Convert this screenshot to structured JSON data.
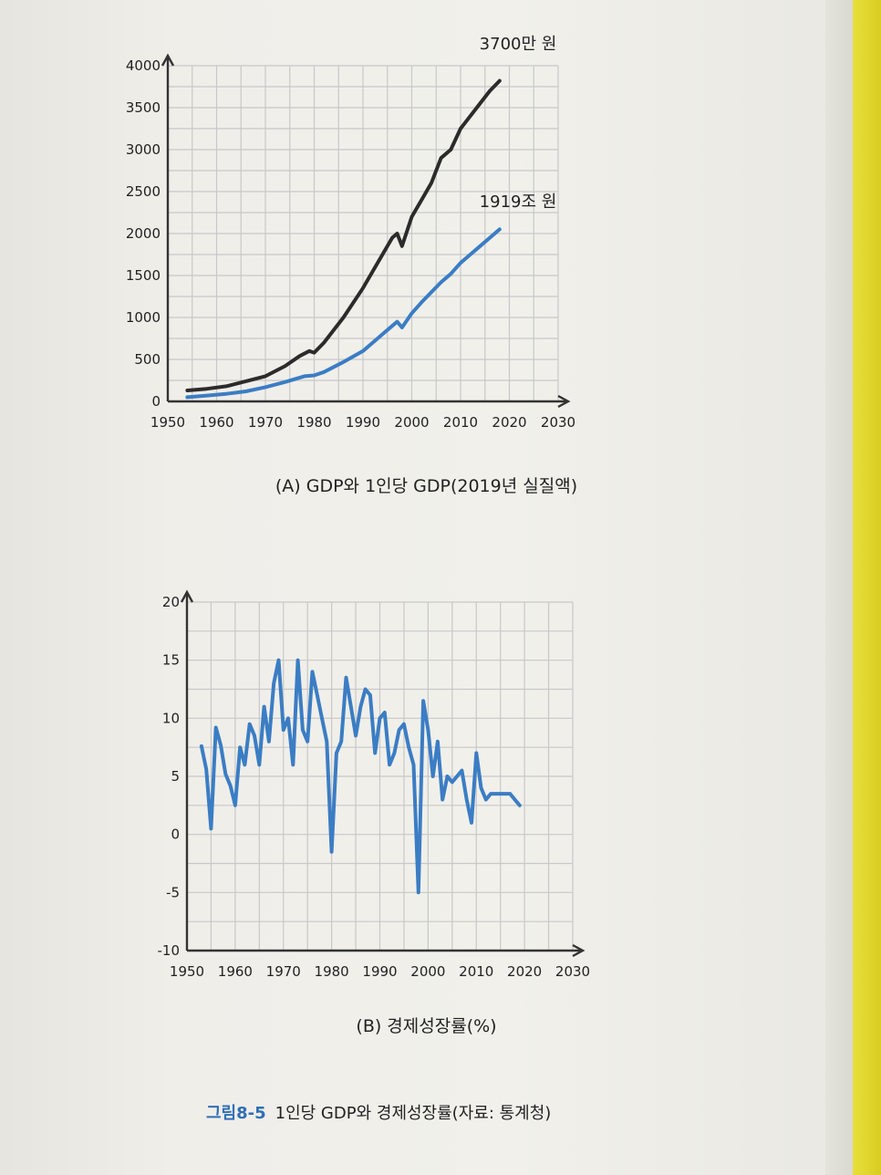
{
  "figure": {
    "number": "그림8-5",
    "title": "1인당 GDP와 경제성장률(자료: 통계청)"
  },
  "colors": {
    "series_black": "#2b2b2b",
    "series_blue": "#3b7dc4",
    "grid": "#c8c8c8",
    "axis": "#333333",
    "caption_accent": "#2f6fb6"
  },
  "chart_data": [
    {
      "type": "line",
      "caption": "(A) GDP와 1인당 GDP(2019년 실질액)",
      "xlim": [
        1950,
        2030
      ],
      "ylim": [
        0,
        4000
      ],
      "x_ticks": [
        "1950",
        "1960",
        "1970",
        "1980",
        "1990",
        "2000",
        "2010",
        "2020",
        "2030"
      ],
      "y_ticks": [
        "0",
        "500",
        "1000",
        "1500",
        "2000",
        "2500",
        "3000",
        "3500",
        "4000"
      ],
      "grid": true,
      "annotations": [
        "3700만 원",
        "1919조 원"
      ],
      "series": [
        {
          "color": "#2b2b2b",
          "x": [
            1954,
            1958,
            1962,
            1966,
            1970,
            1974,
            1977,
            1979,
            1980,
            1982,
            1986,
            1990,
            1994,
            1996,
            1997,
            1998,
            2000,
            2002,
            2004,
            2006,
            2008,
            2010,
            2012,
            2014,
            2016,
            2018
          ],
          "y": [
            130,
            150,
            180,
            240,
            300,
            420,
            540,
            600,
            580,
            700,
            1000,
            1350,
            1750,
            1950,
            2000,
            1850,
            2200,
            2400,
            2600,
            2900,
            3000,
            3250,
            3400,
            3550,
            3700,
            3820
          ]
        },
        {
          "color": "#3b7dc4",
          "x": [
            1954,
            1958,
            1962,
            1966,
            1970,
            1974,
            1978,
            1980,
            1982,
            1986,
            1990,
            1994,
            1996,
            1997,
            1998,
            2000,
            2002,
            2004,
            2006,
            2008,
            2010,
            2012,
            2014,
            2016,
            2018
          ],
          "y": [
            50,
            70,
            90,
            120,
            170,
            230,
            300,
            310,
            350,
            470,
            600,
            800,
            900,
            950,
            880,
            1050,
            1180,
            1300,
            1420,
            1520,
            1650,
            1750,
            1850,
            1950,
            2050
          ]
        }
      ]
    },
    {
      "type": "line",
      "caption": "(B) 경제성장률(%)",
      "xlim": [
        1950,
        2030
      ],
      "ylim": [
        -10,
        20
      ],
      "x_ticks": [
        "1950",
        "1960",
        "1970",
        "1980",
        "1990",
        "2000",
        "2010",
        "2020",
        "2030"
      ],
      "y_ticks": [
        "-10",
        "-5",
        "0",
        "5",
        "10",
        "15",
        "20"
      ],
      "grid": true,
      "series": [
        {
          "color": "#3b7dc4",
          "x": [
            1953,
            1954,
            1955,
            1956,
            1957,
            1958,
            1959,
            1960,
            1961,
            1962,
            1963,
            1964,
            1965,
            1966,
            1967,
            1968,
            1969,
            1970,
            1971,
            1972,
            1973,
            1974,
            1975,
            1976,
            1977,
            1978,
            1979,
            1980,
            1981,
            1982,
            1983,
            1984,
            1985,
            1986,
            1987,
            1988,
            1989,
            1990,
            1991,
            1992,
            1993,
            1994,
            1995,
            1996,
            1997,
            1998,
            1999,
            2000,
            2001,
            2002,
            2003,
            2004,
            2005,
            2006,
            2007,
            2008,
            2009,
            2010,
            2011,
            2012,
            2013,
            2014,
            2015,
            2016,
            2017,
            2018,
            2019
          ],
          "y": [
            7.6,
            5.6,
            0.5,
            9.2,
            7.7,
            5.2,
            4.2,
            2.5,
            7.5,
            6.0,
            9.5,
            8.5,
            6.0,
            11.0,
            8.0,
            13.0,
            15.0,
            9.0,
            10.0,
            6.0,
            15.0,
            9.0,
            8.0,
            14.0,
            12.0,
            10.0,
            8.0,
            -1.5,
            7.0,
            8.0,
            13.5,
            11.0,
            8.5,
            11.0,
            12.5,
            12.0,
            7.0,
            10.0,
            10.5,
            6.0,
            7.0,
            9.0,
            9.5,
            7.5,
            6.0,
            -5.0,
            11.5,
            9.0,
            5.0,
            8.0,
            3.0,
            5.0,
            4.5,
            5.0,
            5.5,
            3.0,
            1.0,
            7.0,
            4.0,
            3.0,
            3.5,
            3.5,
            3.5,
            3.5,
            3.5,
            3.0,
            2.5
          ]
        }
      ]
    }
  ]
}
